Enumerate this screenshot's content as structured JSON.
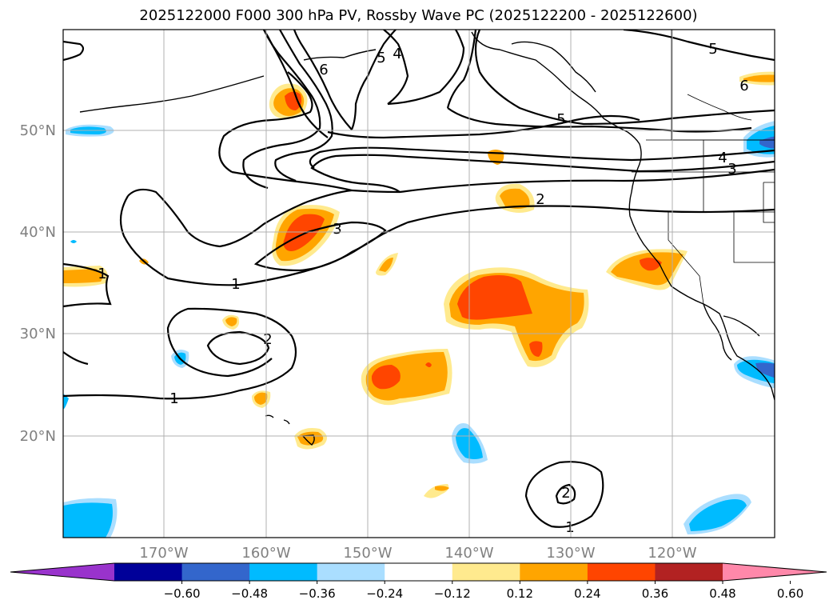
{
  "title": "2025122000 F000 300 hPa PV, Rossby Wave PC (2025122200 - 2025122600)",
  "map": {
    "lon_range": [
      -180,
      -110
    ],
    "lat_range": [
      10,
      60
    ],
    "lon_ticks": [
      "170°W",
      "160°W",
      "150°W",
      "140°W",
      "130°W",
      "120°W"
    ],
    "lat_ticks": [
      "20°N",
      "30°N",
      "40°N",
      "50°N"
    ],
    "grid": true
  },
  "colorbar": {
    "extend": "both",
    "colors": [
      "#9933cc",
      "#000099",
      "#3366cc",
      "#00bbff",
      "#aadeff",
      "#ffffff",
      "#ffea8e",
      "#ffa500",
      "#ff4500",
      "#b22222",
      "#ff88aa"
    ],
    "tick_labels": [
      "−0.60",
      "−0.48",
      "−0.36",
      "−0.24",
      "−0.12",
      "0.12",
      "0.24",
      "0.36",
      "0.48",
      "0.60"
    ]
  },
  "contour_labels": [
    "1",
    "1",
    "1",
    "1",
    "2",
    "2",
    "2",
    "3",
    "3",
    "4",
    "4",
    "5",
    "5",
    "5",
    "6",
    "6"
  ]
}
